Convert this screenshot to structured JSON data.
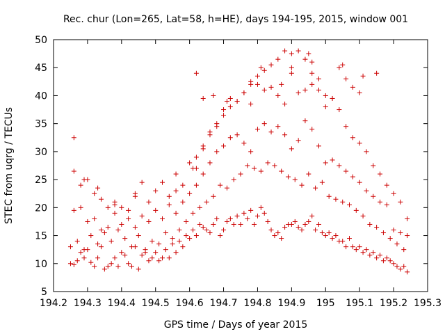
{
  "chart_data": {
    "type": "scatter",
    "title": "Rec. chur (Lon=265, Lat=58, h=HE), days 194-195, 2015, window 001",
    "xlabel": "GPS time / Days of year 2015",
    "ylabel": "STEC from uqrg / TECUs",
    "xlim": [
      194.2,
      195.3
    ],
    "ylim": [
      5,
      50
    ],
    "xticks": [
      194.2,
      194.3,
      194.4,
      194.5,
      194.6,
      194.7,
      194.8,
      194.9,
      195,
      195.1,
      195.2,
      195.3
    ],
    "xtick_labels": [
      "194.2",
      "194.3",
      "194.4",
      "194.5",
      "194.6",
      "194.7",
      "194.8",
      "194.9",
      "195",
      "195.1",
      "195.2",
      "195.3"
    ],
    "yticks": [
      5,
      10,
      15,
      20,
      25,
      30,
      35,
      40,
      45,
      50
    ],
    "ytick_labels": [
      "5",
      "10",
      "15",
      "20",
      "25",
      "30",
      "35",
      "40",
      "45",
      "50"
    ],
    "grid": false,
    "marker": "+",
    "color": "#cc0000",
    "series": [
      {
        "x": [
          194.25,
          194.26,
          194.27,
          194.28,
          194.29,
          194.3,
          194.31,
          194.32,
          194.33,
          194.34,
          194.35,
          194.36,
          194.37,
          194.38,
          194.39,
          194.4,
          194.41,
          194.42,
          194.43,
          194.44,
          194.45,
          194.46,
          194.47,
          194.48,
          194.49,
          194.5,
          194.51,
          194.52,
          194.53,
          194.54,
          194.55,
          194.56,
          194.57,
          194.58,
          194.59,
          194.6,
          194.61,
          194.62,
          194.63,
          194.64,
          194.65,
          194.66,
          194.67,
          194.68,
          194.69,
          194.7,
          194.71,
          194.72,
          194.73,
          194.74,
          194.75,
          194.76,
          194.77,
          194.78,
          194.79,
          194.8,
          194.81,
          194.82,
          194.83,
          194.84,
          194.85,
          194.86,
          194.87,
          194.88,
          194.89,
          194.9,
          194.91,
          194.92,
          194.93,
          194.94,
          194.95,
          194.96,
          194.97,
          194.98,
          194.99,
          195.0,
          195.01,
          195.02,
          195.03,
          195.04,
          195.05,
          195.06,
          195.07,
          195.08,
          195.09,
          195.1,
          195.11,
          195.12,
          195.13,
          195.14,
          195.15,
          195.16,
          195.17,
          195.18,
          195.19,
          195.2,
          195.21,
          195.22,
          195.23,
          195.24,
          194.25,
          194.27,
          194.29,
          194.31,
          194.33,
          194.35,
          194.37,
          194.39,
          194.41,
          194.43,
          194.45,
          194.47,
          194.49,
          194.51,
          194.53,
          194.55,
          194.57,
          194.59,
          194.61,
          194.63,
          194.65,
          194.67,
          194.69,
          194.71,
          194.73,
          194.75,
          194.77,
          194.79,
          194.81,
          194.83,
          194.85,
          194.87,
          194.89,
          194.91,
          194.93,
          194.95,
          194.97,
          194.99,
          195.01,
          195.03,
          195.05,
          195.07,
          195.09,
          195.11,
          195.13,
          195.15,
          195.17,
          195.19,
          195.21,
          195.23,
          194.26,
          194.28,
          194.3,
          194.32,
          194.34,
          194.36,
          194.38,
          194.4,
          194.42,
          194.44,
          194.46,
          194.48,
          194.5,
          194.52,
          194.54,
          194.56,
          194.58,
          194.6,
          194.62,
          194.64,
          194.66,
          194.68,
          194.7,
          194.72,
          194.74,
          194.76,
          194.78,
          194.8,
          194.82,
          194.84,
          194.86,
          194.88,
          194.9,
          194.92,
          194.94,
          194.96,
          194.98,
          195.0,
          195.02,
          195.04,
          195.06,
          195.08,
          195.1,
          195.12,
          195.14,
          195.16,
          195.18,
          195.2,
          195.22,
          195.24,
          194.26,
          194.28,
          194.3,
          194.32,
          194.34,
          194.36,
          194.38,
          194.4,
          194.42,
          194.44,
          194.46,
          194.48,
          194.5,
          194.52,
          194.54,
          194.56,
          194.58,
          194.6,
          194.62,
          194.64,
          194.66,
          194.68,
          194.7,
          194.72,
          194.74,
          194.76,
          194.78,
          194.8,
          194.82,
          194.84,
          194.86,
          194.88,
          194.9,
          194.92,
          194.94,
          194.96,
          194.98,
          195.0,
          195.02,
          195.04,
          195.06,
          195.08,
          195.1,
          195.12,
          195.14,
          195.16,
          195.18,
          195.2,
          195.22,
          195.24,
          194.61,
          194.62,
          194.64,
          194.66,
          194.68,
          194.7,
          194.72,
          194.74,
          194.76,
          194.78,
          194.8,
          194.82,
          194.84,
          194.86,
          194.88,
          194.9,
          194.92,
          194.94,
          194.96,
          194.98,
          195.0,
          195.02,
          195.04,
          195.06,
          195.08,
          195.1,
          194.26,
          194.29,
          194.33,
          194.38,
          194.44,
          194.56,
          194.62,
          194.64,
          194.67,
          194.71,
          194.78,
          194.81,
          194.87,
          194.9,
          194.95,
          194.96,
          195.05,
          195.11,
          195.15
        ],
        "y": [
          10.0,
          9.8,
          10.5,
          12.0,
          11.0,
          12.5,
          10.2,
          9.5,
          11.0,
          13.0,
          9.0,
          9.5,
          10.0,
          11.0,
          9.5,
          12.0,
          11.5,
          10.0,
          9.5,
          13.0,
          9.0,
          11.5,
          12.0,
          10.5,
          11.0,
          12.0,
          10.5,
          11.0,
          12.5,
          11.0,
          13.5,
          12.0,
          14.0,
          13.0,
          15.0,
          14.5,
          16.0,
          15.0,
          17.0,
          16.5,
          16.0,
          15.5,
          17.0,
          18.0,
          15.0,
          16.0,
          17.5,
          18.0,
          17.0,
          18.5,
          17.0,
          19.0,
          18.0,
          19.5,
          17.0,
          18.5,
          20.0,
          19.0,
          17.5,
          16.0,
          15.0,
          15.5,
          14.5,
          16.5,
          17.0,
          17.0,
          17.5,
          16.5,
          16.0,
          17.0,
          17.5,
          18.5,
          16.0,
          17.0,
          15.5,
          15.0,
          15.5,
          14.5,
          15.0,
          14.0,
          14.0,
          13.0,
          14.5,
          13.0,
          12.5,
          13.0,
          12.0,
          12.5,
          11.5,
          12.0,
          11.0,
          11.5,
          10.5,
          11.0,
          10.5,
          10.0,
          9.5,
          9.0,
          9.5,
          8.5,
          13.0,
          14.0,
          12.5,
          15.0,
          13.5,
          15.5,
          14.0,
          16.0,
          14.5,
          13.0,
          15.0,
          12.5,
          14.0,
          13.5,
          15.5,
          14.5,
          16.0,
          17.5,
          19.0,
          20.0,
          21.0,
          22.0,
          24.0,
          23.5,
          25.0,
          26.0,
          27.5,
          27.0,
          26.5,
          28.0,
          27.5,
          26.5,
          25.5,
          25.0,
          24.0,
          26.0,
          23.5,
          24.5,
          22.0,
          21.5,
          21.0,
          20.5,
          19.5,
          18.5,
          17.0,
          16.5,
          15.5,
          14.5,
          13.5,
          12.5,
          19.5,
          20.0,
          17.5,
          18.0,
          16.0,
          16.5,
          19.0,
          17.0,
          18.0,
          16.5,
          18.5,
          17.5,
          19.5,
          18.0,
          20.5,
          19.0,
          21.0,
          22.5,
          24.0,
          26.0,
          28.0,
          30.0,
          31.0,
          32.5,
          33.0,
          31.5,
          30.0,
          34.0,
          35.0,
          33.5,
          34.5,
          33.0,
          30.5,
          32.0,
          35.5,
          34.0,
          31.0,
          28.0,
          28.5,
          27.5,
          26.5,
          25.5,
          24.5,
          23.0,
          22.0,
          21.0,
          20.5,
          16.0,
          15.5,
          15.0,
          32.5,
          24.0,
          25.0,
          22.5,
          21.5,
          20.0,
          21.0,
          20.0,
          19.5,
          22.5,
          24.5,
          21.0,
          23.0,
          24.5,
          22.0,
          26.0,
          24.0,
          28.0,
          27.0,
          30.5,
          33.0,
          34.5,
          36.5,
          38.0,
          39.0,
          40.5,
          42.0,
          43.5,
          44.5,
          41.5,
          40.0,
          38.5,
          44.0,
          40.5,
          41.0,
          44.0,
          43.0,
          38.0,
          39.5,
          37.5,
          34.5,
          32.5,
          31.5,
          30.0,
          27.5,
          26.0,
          24.0,
          22.5,
          21.0,
          18.0,
          27.0,
          29.0,
          31.0,
          33.5,
          35.0,
          37.5,
          39.5,
          39.0,
          40.5,
          38.5,
          42.0,
          41.0,
          45.5,
          46.5,
          48.0,
          47.5,
          48.0,
          46.5,
          42.0,
          41.0,
          40.0,
          39.5,
          45.0,
          43.0,
          41.5,
          40.5,
          26.5,
          25.0,
          23.5,
          20.5,
          22.0,
          23.0,
          44.0,
          39.5,
          40.0,
          39.0,
          42.5,
          45.0,
          42.0,
          45.0,
          47.5,
          46.0,
          45.5,
          43.5,
          44.0
        ]
      }
    ]
  }
}
